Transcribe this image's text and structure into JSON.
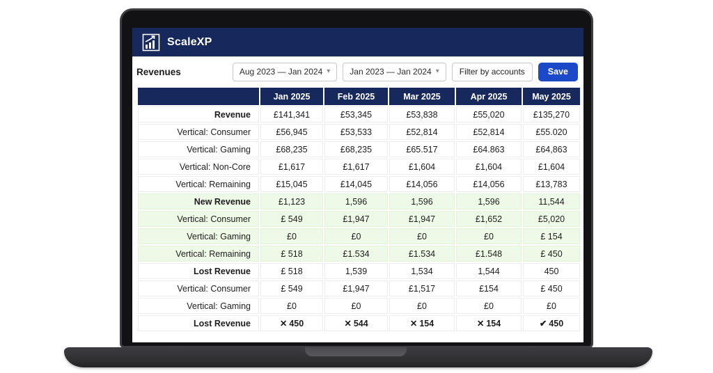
{
  "brand": {
    "name": "ScaleXP"
  },
  "toolbar": {
    "title": "Revenues",
    "dropdown1": "Aug 2023 — Jan 2024",
    "dropdown2": "Jan 2023 — Jan 2024",
    "filter_label": "Filter by accounts",
    "save_label": "Save"
  },
  "icons": {
    "caret": "▾",
    "cross": "✕",
    "check": "✔",
    "logo": "bar-chart-with-rising-arrow"
  },
  "colors": {
    "navy": "#17295c",
    "accent_blue": "#1b49c8",
    "green_tint": "#eefae7"
  },
  "table": {
    "columns": [
      "",
      "Jan 2025",
      "Feb 2025",
      "Mar 2025",
      "Apr 2025",
      "May 2025"
    ],
    "rows": [
      {
        "label": "Revenue",
        "section": true,
        "values": [
          "£141,341",
          "£53,345",
          "£53,838",
          "£55,020",
          "£135,270"
        ]
      },
      {
        "label": "Vertical: Consumer",
        "values": [
          "£56,945",
          "£53,533",
          "£52,814",
          "£52,814",
          "£55.020"
        ]
      },
      {
        "label": "Vertical: Gaming",
        "values": [
          "£68,235",
          "£68,235",
          "£65.517",
          "£64.863",
          "£64,863"
        ]
      },
      {
        "label": "Vertical: Non-Core",
        "values": [
          "£1,617",
          "£1,617",
          "£1,604",
          "£1,604",
          "£1,604"
        ]
      },
      {
        "label": "Vertical: Remaining",
        "values": [
          "£15,045",
          "£14,045",
          "£14,056",
          "£14,056",
          "£13,783"
        ]
      },
      {
        "label": "New Revenue",
        "section": true,
        "green": true,
        "values": [
          "£1,123",
          "1,596",
          "1,596",
          "1,596",
          "11,544"
        ]
      },
      {
        "label": "Vertical: Consumer",
        "green": true,
        "values": [
          "£ 549",
          "£1,947",
          "£1,947",
          "£1,652",
          "£5,020"
        ]
      },
      {
        "label": "Vertical: Gaming",
        "green": true,
        "values": [
          "£0",
          "£0",
          "£0",
          "£0",
          "£ 154"
        ]
      },
      {
        "label": "Vertical: Remaining",
        "green": true,
        "values": [
          "£ 518",
          "£1.534",
          "£1.534",
          "£1.548",
          "£ 450"
        ]
      },
      {
        "label": "Lost Revenue",
        "section": true,
        "values": [
          "£ 518",
          "1,539",
          "1,534",
          "1,544",
          "450"
        ]
      },
      {
        "label": "Vertical: Consumer",
        "values": [
          "£ 549",
          "£1,947",
          "£1,517",
          "£154",
          "£ 450"
        ]
      },
      {
        "label": "Vertical: Gaming",
        "values": [
          "£0",
          "£0",
          "£0",
          "£0",
          "£0"
        ]
      },
      {
        "label": "Lost Revenue",
        "section": true,
        "icons": [
          "cross",
          "cross",
          "cross",
          "cross",
          "check"
        ],
        "values": [
          "450",
          "544",
          "154",
          "154",
          "450"
        ]
      }
    ]
  }
}
